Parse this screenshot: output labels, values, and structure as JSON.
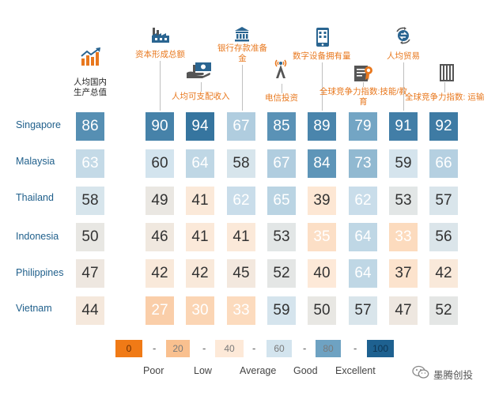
{
  "chart_data": {
    "type": "heatmap",
    "columns": [
      {
        "label": "人均国内\n生产总值",
        "icon": "growth-chart-icon"
      },
      {
        "label": "资本形成总额",
        "icon": "factory-icon"
      },
      {
        "label": "人均可支配收入",
        "icon": "money-hand-icon"
      },
      {
        "label": "银行存款准备\n金",
        "icon": "bank-icon"
      },
      {
        "label": "电信投资",
        "icon": "signal-tower-icon"
      },
      {
        "label": "数字设备拥有量",
        "icon": "mobile-device-icon"
      },
      {
        "label": "全球竞争力指数:技能/教\n育",
        "icon": "certificate-icon"
      },
      {
        "label": "人均贸易",
        "icon": "trade-exchange-icon"
      },
      {
        "label": "全球竞争力指数: 运输",
        "icon": "container-icon"
      }
    ],
    "rows": [
      {
        "country": "Singapore",
        "values": [
          86,
          90,
          94,
          67,
          85,
          89,
          79,
          91,
          92
        ]
      },
      {
        "country": "Malaysia",
        "values": [
          63,
          60,
          64,
          58,
          67,
          84,
          73,
          59,
          66
        ]
      },
      {
        "country": "Thailand",
        "values": [
          58,
          49,
          41,
          62,
          65,
          39,
          62,
          53,
          57
        ]
      },
      {
        "country": "Indonesia",
        "values": [
          50,
          46,
          41,
          41,
          53,
          35,
          64,
          33,
          56
        ]
      },
      {
        "country": "Philippines",
        "values": [
          47,
          42,
          42,
          45,
          52,
          40,
          64,
          37,
          42
        ]
      },
      {
        "country": "Vietnam",
        "values": [
          44,
          27,
          30,
          33,
          59,
          50,
          57,
          47,
          52
        ]
      }
    ],
    "scale": {
      "stops": [
        {
          "value": 0,
          "color": "#f07a16"
        },
        {
          "value": 20,
          "color": "#f9c08f"
        },
        {
          "value": 40,
          "color": "#fde9d8"
        },
        {
          "value": 60,
          "color": "#d3e4ee"
        },
        {
          "value": 80,
          "color": "#6ea2c2"
        },
        {
          "value": 100,
          "color": "#1e6190"
        }
      ],
      "labels": [
        "Poor",
        "Low",
        "Average",
        "Good",
        "Excellent"
      ],
      "separator": "-"
    }
  },
  "watermark": "墨腾创投"
}
